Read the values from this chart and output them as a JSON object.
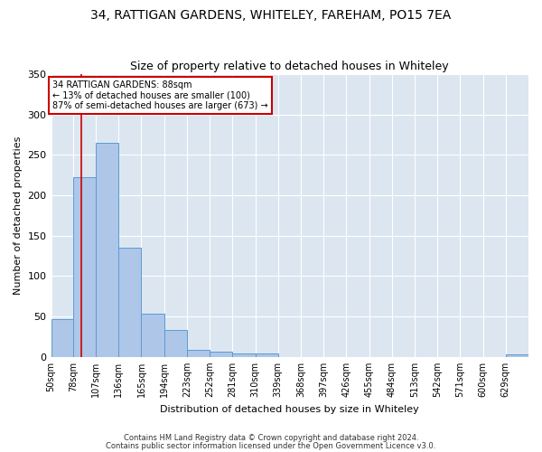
{
  "title": "34, RATTIGAN GARDENS, WHITELEY, FAREHAM, PO15 7EA",
  "subtitle": "Size of property relative to detached houses in Whiteley",
  "xlabel": "Distribution of detached houses by size in Whiteley",
  "ylabel": "Number of detached properties",
  "footnote1": "Contains HM Land Registry data © Crown copyright and database right 2024.",
  "footnote2": "Contains public sector information licensed under the Open Government Licence v3.0.",
  "bin_labels": [
    "50sqm",
    "78sqm",
    "107sqm",
    "136sqm",
    "165sqm",
    "194sqm",
    "223sqm",
    "252sqm",
    "281sqm",
    "310sqm",
    "339sqm",
    "368sqm",
    "397sqm",
    "426sqm",
    "455sqm",
    "484sqm",
    "513sqm",
    "542sqm",
    "571sqm",
    "600sqm",
    "629sqm"
  ],
  "bar_heights": [
    47,
    222,
    265,
    135,
    54,
    33,
    9,
    7,
    4,
    4,
    0,
    0,
    0,
    0,
    0,
    0,
    0,
    0,
    0,
    0,
    3
  ],
  "bar_color": "#aec6e8",
  "bar_edge_color": "#5b9bd5",
  "vline_color": "#cc0000",
  "vline_x": 88,
  "annotation_line1": "34 RATTIGAN GARDENS: 88sqm",
  "annotation_line2": "← 13% of detached houses are smaller (100)",
  "annotation_line3": "87% of semi-detached houses are larger (673) →",
  "annotation_box_facecolor": "#ffffff",
  "annotation_box_edgecolor": "#cc0000",
  "ylim": [
    0,
    350
  ],
  "yticks": [
    0,
    50,
    100,
    150,
    200,
    250,
    300,
    350
  ],
  "plot_bg_color": "#dce6f1",
  "grid_color": "#ffffff",
  "title_fontsize": 10,
  "subtitle_fontsize": 9,
  "axis_label_fontsize": 8,
  "tick_fontsize": 7,
  "footnote_fontsize": 6
}
